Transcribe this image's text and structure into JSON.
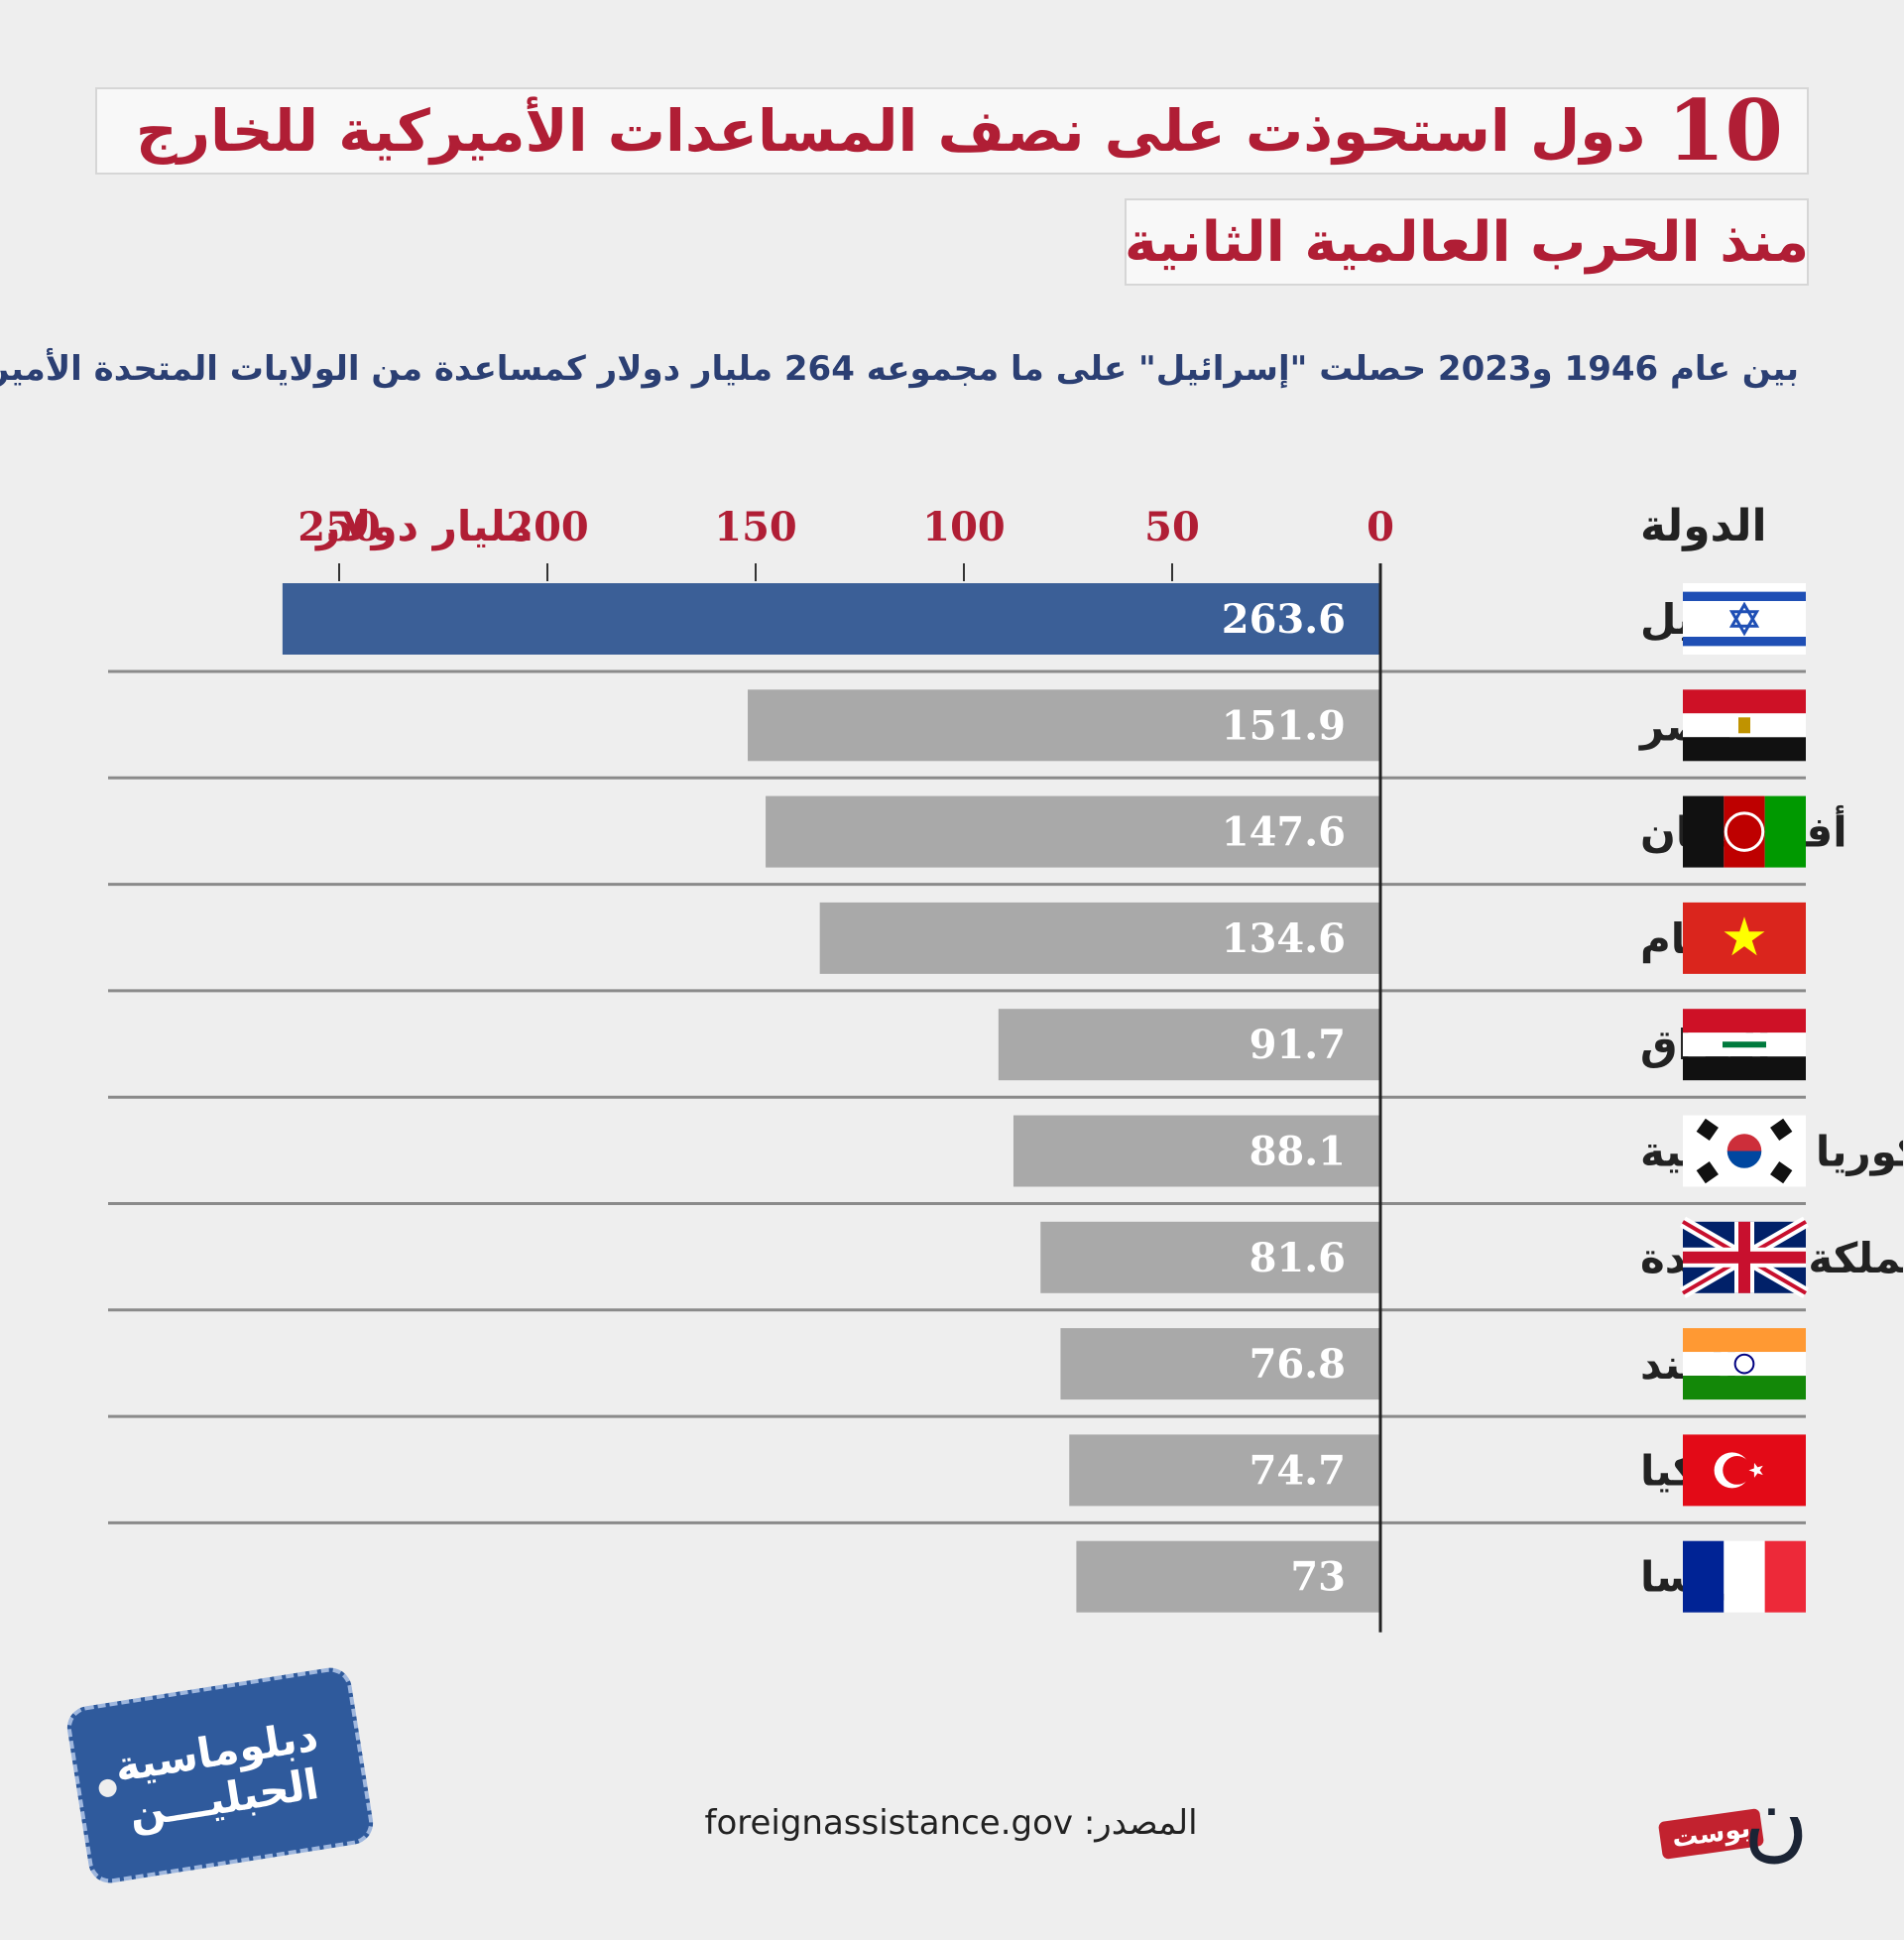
{
  "title": {
    "number": "10",
    "text": "دول استحوذت على نصف المساعدات الأميركية للخارج"
  },
  "subtitle": "منذ الحرب العالمية الثانية",
  "intro": "بين عام 1946 و2023 حصلت \"إسرائيل\" على ما مجموعه 264 مليار دولار كمساعدة من الولايات المتحدة الأميركية",
  "chart_data": {
    "type": "bar",
    "orientation": "horizontal",
    "category_header": "الدولة",
    "unit_label": "مليار دولار",
    "xlim": [
      0,
      250
    ],
    "ticks": [
      0,
      50,
      100,
      150,
      200,
      250
    ],
    "categories": [
      "إسرائيل",
      "مصر",
      "أفغانستان",
      "فيتنام",
      "العراق",
      "كوريا الجنوبية",
      "المملكة المتحدة",
      "الهند",
      "تركيا",
      "فرنسا"
    ],
    "values": [
      263.6,
      151.9,
      147.6,
      134.6,
      91.7,
      88.1,
      81.6,
      76.8,
      74.7,
      73
    ],
    "value_labels": [
      "263.6",
      "151.9",
      "147.6",
      "134.6",
      "91.7",
      "88.1",
      "81.6",
      "76.8",
      "74.7",
      "73"
    ],
    "flags": [
      "israel-flag",
      "egypt-flag",
      "afghanistan-flag",
      "vietnam-flag",
      "iraq-flag",
      "south-korea-flag",
      "uk-flag",
      "india-flag",
      "turkey-flag",
      "france-flag"
    ],
    "colors": {
      "highlight": "#3b5f97",
      "default": "#a9a9a9",
      "tick_text": "#b01e35"
    }
  },
  "source": {
    "label": "المصدر:",
    "url": "foreignassistance.gov"
  },
  "logo": {
    "line1": "دبلوماسية",
    "line2": "الحبليـــن"
  },
  "brand": {
    "badge": "بوست",
    "mark": "ن"
  }
}
